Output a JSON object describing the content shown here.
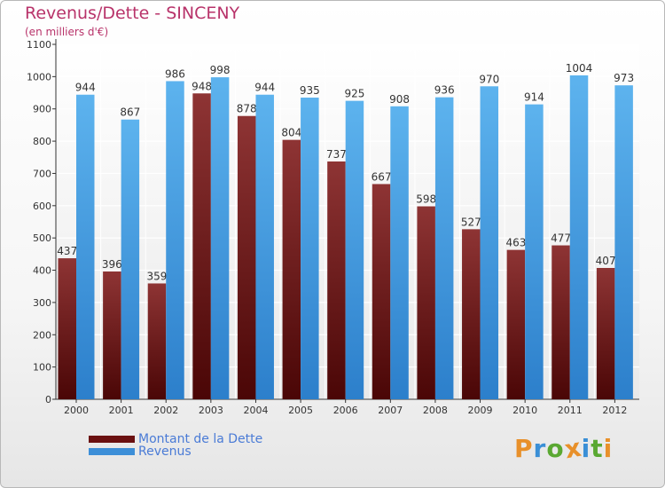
{
  "chart_data": {
    "type": "bar",
    "title": "Revenus/Dette - SINCENY",
    "subtitle": "(en milliers d'€)",
    "categories": [
      "2000",
      "2001",
      "2002",
      "2003",
      "2004",
      "2005",
      "2006",
      "2007",
      "2008",
      "2009",
      "2010",
      "2011",
      "2012"
    ],
    "series": [
      {
        "name": "Montant de la Dette",
        "color": "#7a1a1a",
        "values": [
          437,
          396,
          359,
          948,
          878,
          804,
          737,
          667,
          598,
          527,
          463,
          477,
          407
        ]
      },
      {
        "name": "Revenus",
        "color": "#4ea6e6",
        "values": [
          944,
          867,
          986,
          998,
          944,
          935,
          925,
          908,
          936,
          970,
          914,
          1004,
          973
        ]
      }
    ],
    "ylim": [
      0,
      1100
    ],
    "yticks": [
      0,
      100,
      200,
      300,
      400,
      500,
      600,
      700,
      800,
      900,
      1000,
      1100
    ],
    "grid": true,
    "xlabel": "",
    "ylabel": "",
    "legend_position": "bottom-left"
  },
  "legend": {
    "debt_label": "Montant de la Dette",
    "revenue_label": "Revenus"
  },
  "logo": {
    "letters": [
      "P",
      "r",
      "o",
      "x",
      "i",
      "t",
      "i"
    ],
    "colors": [
      "#e8902a",
      "#3a8fd6",
      "#5aa832",
      "#e8902a",
      "#3a8fd6",
      "#5aa832",
      "#e8902a"
    ]
  }
}
